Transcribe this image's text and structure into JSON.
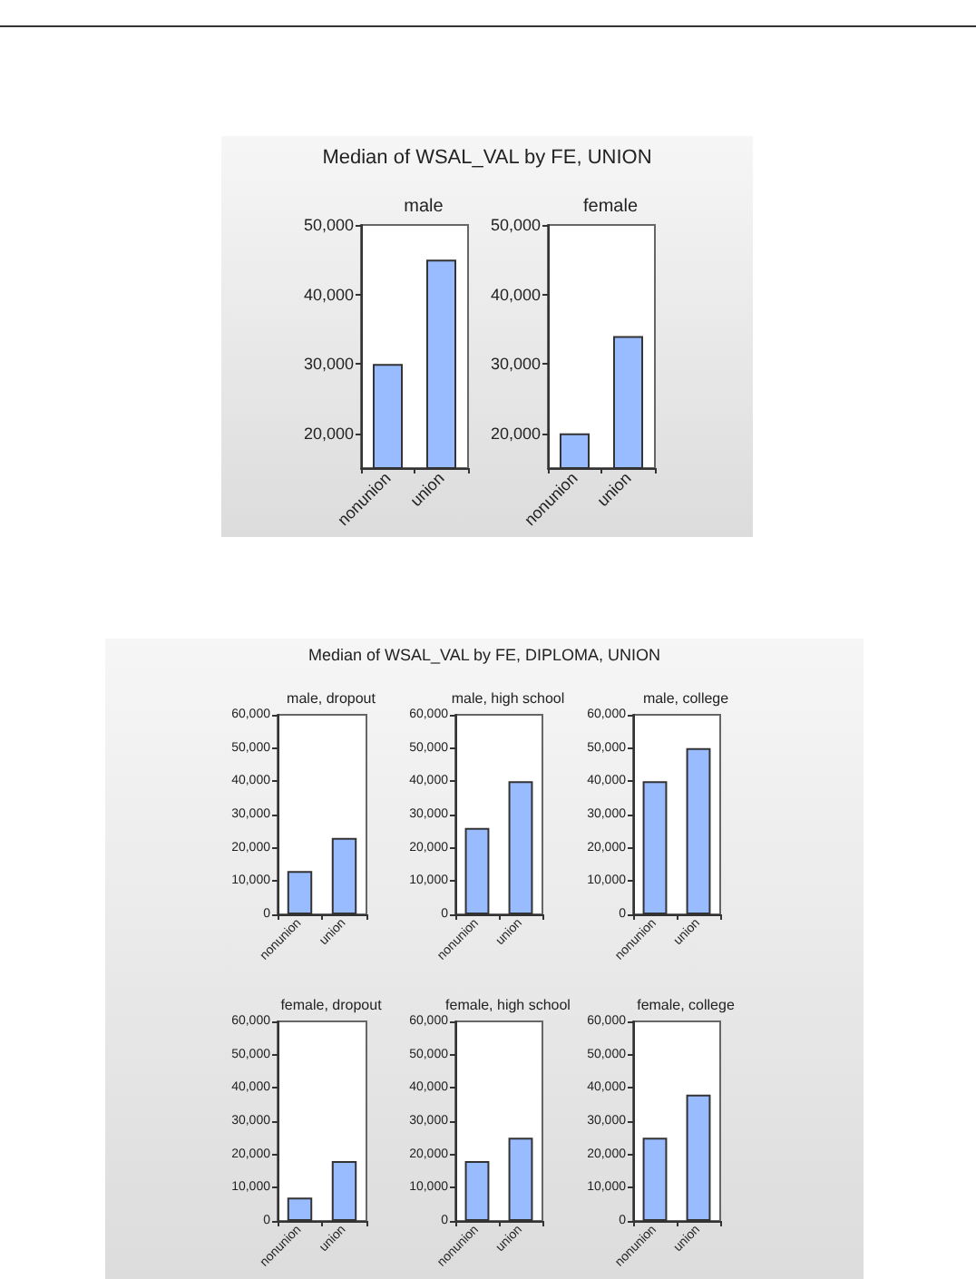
{
  "chart_data": [
    {
      "type": "bar",
      "title": "male",
      "annotations": [
        "Median of WSAL_VAL by FE, UNION"
      ],
      "categories": [
        "nonunion",
        "union"
      ],
      "values": [
        30000,
        45000
      ],
      "color": "#99bbff",
      "ylim": [
        15000,
        50000
      ],
      "yticks": [
        {
          "value": 20000,
          "label": "20,000"
        },
        {
          "value": 30000,
          "label": "30,000"
        },
        {
          "value": 40000,
          "label": "40,000"
        },
        {
          "value": 50000,
          "label": "50,000"
        }
      ],
      "grid": false
    },
    {
      "type": "bar",
      "title": "female",
      "categories": [
        "nonunion",
        "union"
      ],
      "values": [
        20000,
        34000
      ],
      "color": "#99bbff",
      "ylim": [
        15000,
        50000
      ],
      "yticks": [
        {
          "value": 20000,
          "label": "20,000"
        },
        {
          "value": 30000,
          "label": "30,000"
        },
        {
          "value": 40000,
          "label": "40,000"
        },
        {
          "value": 50000,
          "label": "50,000"
        }
      ],
      "grid": false
    },
    {
      "type": "bar",
      "title": "male, dropout",
      "annotations": [
        "Median of WSAL_VAL by FE, DIPLOMA, UNION"
      ],
      "categories": [
        "nonunion",
        "union"
      ],
      "values": [
        13000,
        23000
      ],
      "color": "#99bbff",
      "ylim": [
        0,
        60000
      ],
      "yticks": [
        {
          "value": 0,
          "label": "0"
        },
        {
          "value": 10000,
          "label": "10,000"
        },
        {
          "value": 20000,
          "label": "20,000"
        },
        {
          "value": 30000,
          "label": "30,000"
        },
        {
          "value": 40000,
          "label": "40,000"
        },
        {
          "value": 50000,
          "label": "50,000"
        },
        {
          "value": 60000,
          "label": "60,000"
        }
      ],
      "grid": false
    },
    {
      "type": "bar",
      "title": "male, high school",
      "categories": [
        "nonunion",
        "union"
      ],
      "values": [
        26000,
        40000
      ],
      "color": "#99bbff",
      "ylim": [
        0,
        60000
      ],
      "yticks": [
        {
          "value": 0,
          "label": "0"
        },
        {
          "value": 10000,
          "label": "10,000"
        },
        {
          "value": 20000,
          "label": "20,000"
        },
        {
          "value": 30000,
          "label": "30,000"
        },
        {
          "value": 40000,
          "label": "40,000"
        },
        {
          "value": 50000,
          "label": "50,000"
        },
        {
          "value": 60000,
          "label": "60,000"
        }
      ],
      "grid": false
    },
    {
      "type": "bar",
      "title": "male, college",
      "categories": [
        "nonunion",
        "union"
      ],
      "values": [
        40000,
        50000
      ],
      "color": "#99bbff",
      "ylim": [
        0,
        60000
      ],
      "yticks": [
        {
          "value": 0,
          "label": "0"
        },
        {
          "value": 10000,
          "label": "10,000"
        },
        {
          "value": 20000,
          "label": "20,000"
        },
        {
          "value": 30000,
          "label": "30,000"
        },
        {
          "value": 40000,
          "label": "40,000"
        },
        {
          "value": 50000,
          "label": "50,000"
        },
        {
          "value": 60000,
          "label": "60,000"
        }
      ],
      "grid": false
    },
    {
      "type": "bar",
      "title": "female, dropout",
      "categories": [
        "nonunion",
        "union"
      ],
      "values": [
        7000,
        18000
      ],
      "color": "#99bbff",
      "ylim": [
        0,
        60000
      ],
      "yticks": [
        {
          "value": 0,
          "label": "0"
        },
        {
          "value": 10000,
          "label": "10,000"
        },
        {
          "value": 20000,
          "label": "20,000"
        },
        {
          "value": 30000,
          "label": "30,000"
        },
        {
          "value": 40000,
          "label": "40,000"
        },
        {
          "value": 50000,
          "label": "50,000"
        },
        {
          "value": 60000,
          "label": "60,000"
        }
      ],
      "grid": false
    },
    {
      "type": "bar",
      "title": "female, high school",
      "categories": [
        "nonunion",
        "union"
      ],
      "values": [
        18000,
        25000
      ],
      "color": "#99bbff",
      "ylim": [
        0,
        60000
      ],
      "yticks": [
        {
          "value": 0,
          "label": "0"
        },
        {
          "value": 10000,
          "label": "10,000"
        },
        {
          "value": 20000,
          "label": "20,000"
        },
        {
          "value": 30000,
          "label": "30,000"
        },
        {
          "value": 40000,
          "label": "40,000"
        },
        {
          "value": 50000,
          "label": "50,000"
        },
        {
          "value": 60000,
          "label": "60,000"
        }
      ],
      "grid": false
    },
    {
      "type": "bar",
      "title": "female, college",
      "categories": [
        "nonunion",
        "union"
      ],
      "values": [
        25000,
        38000
      ],
      "color": "#99bbff",
      "ylim": [
        0,
        60000
      ],
      "yticks": [
        {
          "value": 0,
          "label": "0"
        },
        {
          "value": 10000,
          "label": "10,000"
        },
        {
          "value": 20000,
          "label": "20,000"
        },
        {
          "value": 30000,
          "label": "30,000"
        },
        {
          "value": 40000,
          "label": "40,000"
        },
        {
          "value": 50000,
          "label": "50,000"
        },
        {
          "value": 60000,
          "label": "60,000"
        }
      ],
      "grid": false
    }
  ]
}
